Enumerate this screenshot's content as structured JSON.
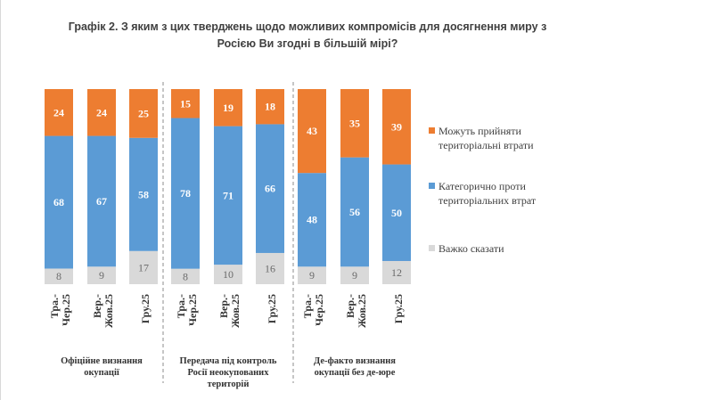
{
  "title_lines": [
    "Графік 2. З яким з цих тверджень щодо можливих компромісів для досягнення миру з",
    "Росією Ви згодні в більшій мірі?"
  ],
  "chart_data": {
    "type": "bar",
    "stacked": true,
    "percent_scale": true,
    "groups": [
      {
        "label_lines": [
          "Офіційне визнання",
          "окупації"
        ],
        "categories": [
          [
            "Тра.-",
            "Чер.25"
          ],
          [
            "Вер.-",
            "Жов.25"
          ],
          [
            "Гру.25"
          ]
        ]
      },
      {
        "label_lines": [
          "Передача під контроль",
          "Росії неокупованих",
          "територій"
        ],
        "categories": [
          [
            "Тра.-",
            "Чер.25"
          ],
          [
            "Вер.-",
            "Жов.25"
          ],
          [
            "Гру.25"
          ]
        ]
      },
      {
        "label_lines": [
          "Де-факто визнання",
          "окупації без де-юре"
        ],
        "categories": [
          [
            "Тра.-",
            "Чер.25"
          ],
          [
            "Вер.-",
            "Жов.25"
          ],
          [
            "Гру.25"
          ]
        ]
      }
    ],
    "series": [
      {
        "name": "Важко сказати",
        "color": "#d9d9d9",
        "values": [
          8,
          9,
          17,
          8,
          10,
          16,
          9,
          9,
          12
        ]
      },
      {
        "name": "Категорично проти територіальних втрат",
        "color": "#5b9bd5",
        "values": [
          68,
          67,
          58,
          78,
          71,
          66,
          48,
          56,
          50
        ]
      },
      {
        "name": "Можуть прийняти територіальні втрати",
        "color": "#ed7d31",
        "values": [
          24,
          24,
          25,
          15,
          19,
          18,
          43,
          35,
          39
        ]
      }
    ],
    "legend": {
      "position": "right",
      "items": [
        {
          "lines": [
            "Можуть прийняти",
            "територіальні втрати"
          ],
          "color": "#ed7d31"
        },
        {
          "lines": [
            "Категорично проти",
            "територіальних втрат"
          ],
          "color": "#5b9bd5"
        },
        {
          "lines": [
            "Важко сказати"
          ],
          "color": "#d9d9d9"
        }
      ]
    },
    "separators": "dashed"
  }
}
